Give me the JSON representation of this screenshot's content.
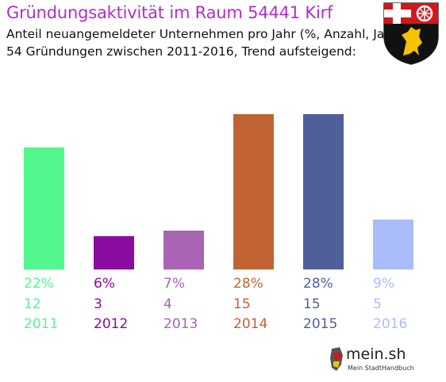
{
  "header": {
    "title": "Gründungsaktivität im Raum 54441 Kirf",
    "subtitle_1": "Anteil neuangemeldeter Unternehmen pro Jahr (%, Anzahl, Jahr)",
    "subtitle_2": "54 Gründungen zwischen 2011-2016, Trend aufsteigend:"
  },
  "chart_data": {
    "type": "bar",
    "title": "Gründungsaktivität im Raum 54441 Kirf",
    "categories": [
      "2011",
      "2012",
      "2013",
      "2014",
      "2015",
      "2016"
    ],
    "values": [
      22,
      6,
      7,
      28,
      28,
      9
    ],
    "counts": [
      12,
      3,
      4,
      15,
      15,
      5
    ],
    "percent_labels": [
      "22%",
      "6%",
      "7%",
      "28%",
      "28%",
      "9%"
    ],
    "count_labels": [
      "12",
      "3",
      "4",
      "15",
      "15",
      "5"
    ],
    "colors": [
      "#52f78e",
      "#8b0aa0",
      "#a964b4",
      "#c06434",
      "#4f5f99",
      "#abbcfc"
    ],
    "ylim": [
      0,
      28
    ],
    "grid": false,
    "legend": "none"
  },
  "logo": {
    "text": "mein.sh",
    "subtext": "Mein StadtHandbuch"
  },
  "crest": {
    "name": "rheinland-pfalz-crest-icon"
  }
}
